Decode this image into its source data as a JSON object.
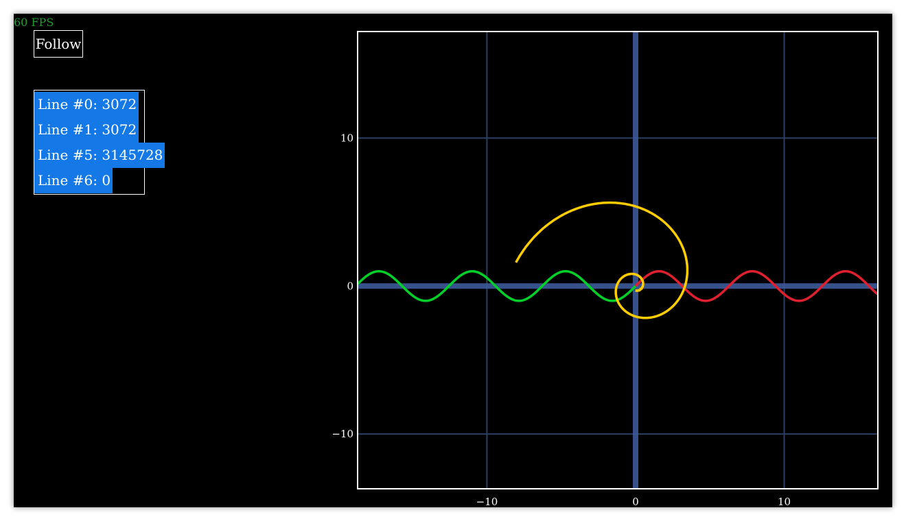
{
  "fps": "60 FPS",
  "follow_button": "Follow",
  "line_counts": [
    "Line #0: 3072",
    "Line #1: 3072",
    "Line #5: 3145728",
    "Line #6: 0"
  ],
  "chart_data": {
    "type": "line",
    "xlim": [
      -18.7,
      16.3
    ],
    "ylim": [
      -13.7,
      17.2
    ],
    "x_ticks": [
      "−10",
      "0",
      "10"
    ],
    "y_ticks": [
      "10",
      "0",
      "−10"
    ],
    "x_tick_values": [
      -10,
      0,
      10
    ],
    "y_tick_values": [
      10,
      0,
      -10
    ],
    "grid": true,
    "series": [
      {
        "color": "#00d02a",
        "kind": "sine",
        "x_range": [
          -18.7,
          0
        ],
        "amplitude": 1.0,
        "period": 6.28
      },
      {
        "color": "#e0202e",
        "kind": "sine",
        "x_range": [
          0,
          16.3
        ],
        "amplitude": 1.0,
        "period": 6.28
      },
      {
        "color": "#ffcc00",
        "kind": "golden-spiral",
        "growth_per_quarter_turn": 1.618
      }
    ],
    "colors": {
      "background": "#000000",
      "grid": "#2c3f66",
      "axis": "#3d5a9a",
      "frame": "#ffffff"
    }
  }
}
